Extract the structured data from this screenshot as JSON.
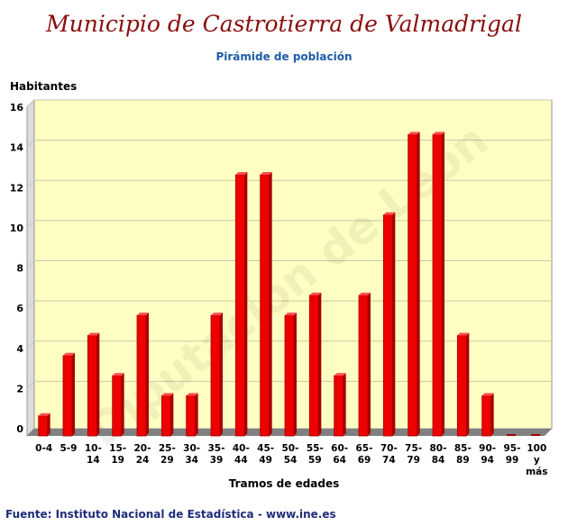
{
  "title": "Municipio de Castrotierra de Valmadrigal",
  "subtitle": "Pirámide de población",
  "source": "Fuente: Instituto Nacional de Estadística - www.ine.es",
  "watermark": "Diputación de León",
  "colors": {
    "title": "#8b0d0d",
    "subtitle": "#1f5ca8",
    "plot_bg": "#ffffc4",
    "bar": "#ee0000",
    "bar_dark": "#a60000",
    "floor": "#808080"
  },
  "chart_data": {
    "type": "bar",
    "xlabel": "Tramos de edades",
    "ylabel": "Habitantes",
    "ylim": [
      0,
      16
    ],
    "yticks": [
      0,
      2,
      4,
      6,
      8,
      10,
      12,
      14,
      16
    ],
    "grid": true,
    "categories": [
      [
        "0-4"
      ],
      [
        "5-9"
      ],
      [
        "10-",
        "14"
      ],
      [
        "15-",
        "19"
      ],
      [
        "20-",
        "24"
      ],
      [
        "25-",
        "29"
      ],
      [
        "30-",
        "34"
      ],
      [
        "35-",
        "39"
      ],
      [
        "40-",
        "44"
      ],
      [
        "45-",
        "49"
      ],
      [
        "50-",
        "54"
      ],
      [
        "55-",
        "59"
      ],
      [
        "60-",
        "64"
      ],
      [
        "65-",
        "69"
      ],
      [
        "70-",
        "74"
      ],
      [
        "75-",
        "79"
      ],
      [
        "80-",
        "84"
      ],
      [
        "85-",
        "89"
      ],
      [
        "90-",
        "94"
      ],
      [
        "95-",
        "99"
      ],
      [
        "100",
        "y",
        "más"
      ]
    ],
    "values": [
      1,
      4,
      5,
      3,
      6,
      2,
      2,
      6,
      13,
      13,
      6,
      7,
      3,
      7,
      11,
      15,
      15,
      5,
      2,
      0,
      0
    ]
  }
}
